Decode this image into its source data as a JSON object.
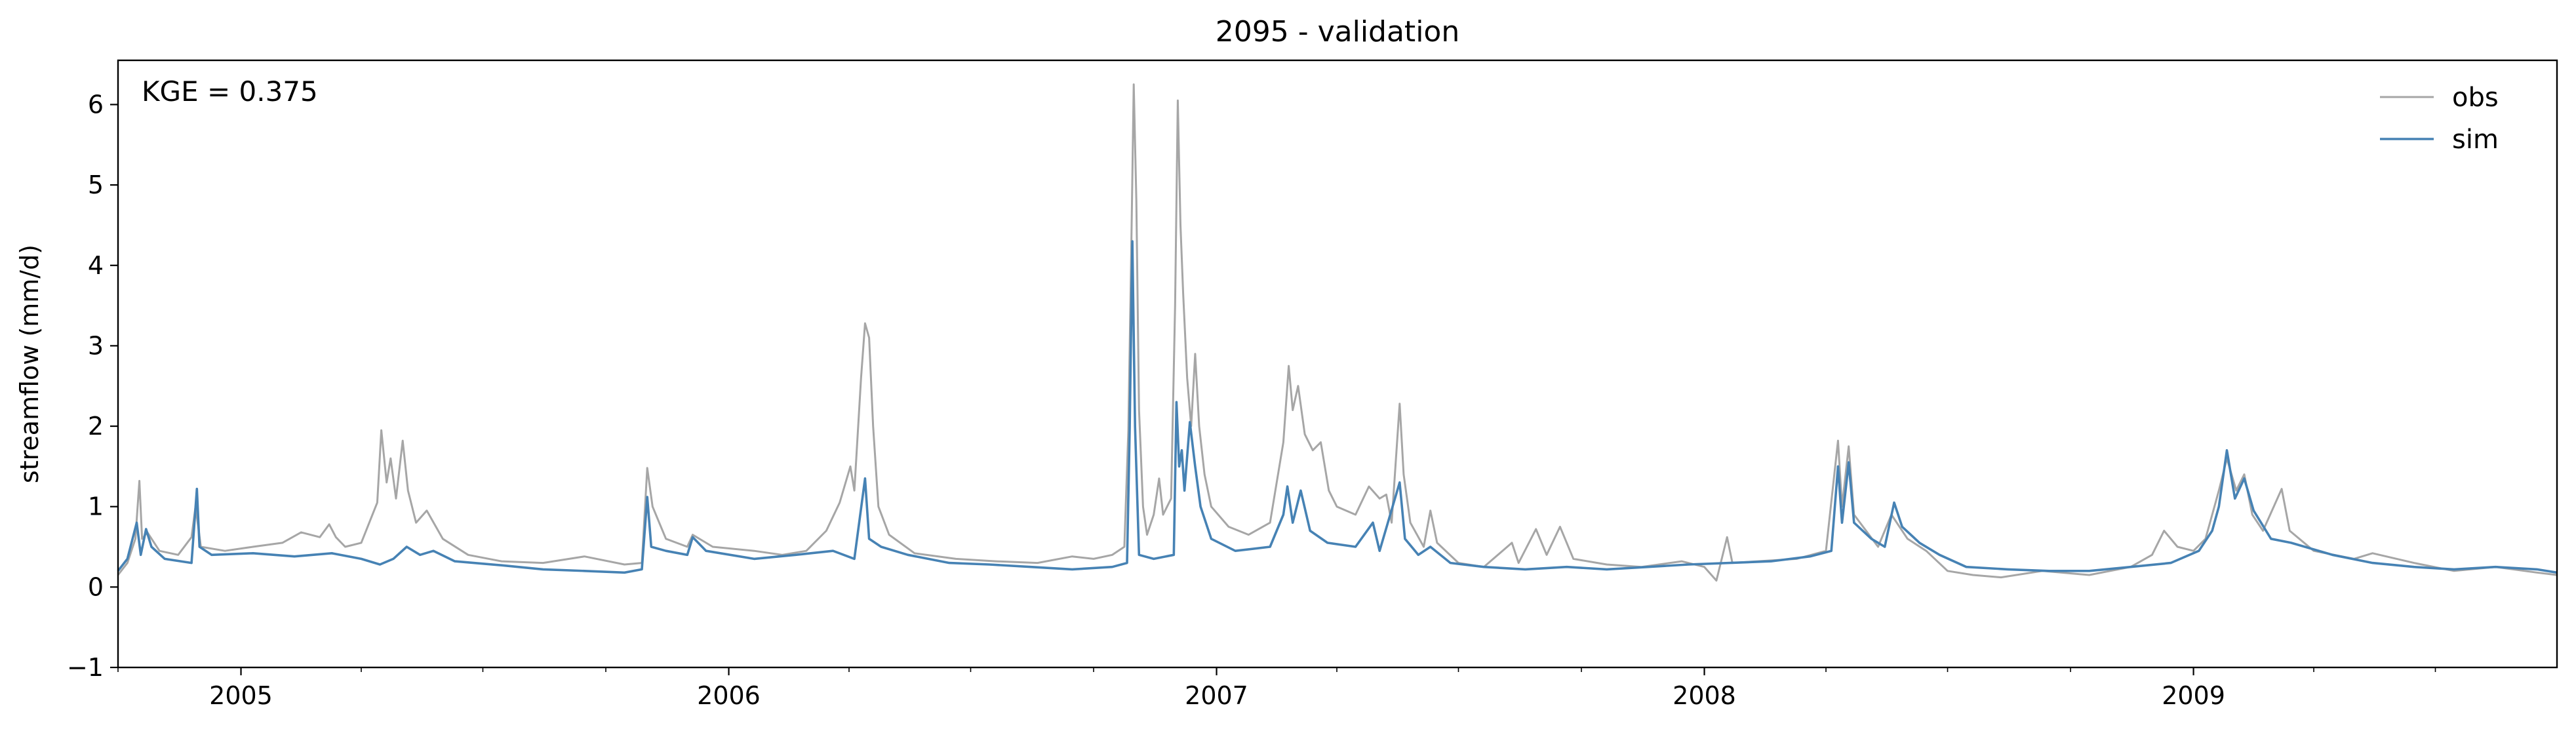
{
  "chart_data": {
    "type": "line",
    "title": "2095 - validation",
    "xlabel": "",
    "ylabel": "streamflow (mm/d)",
    "annotation": "KGE = 0.375",
    "xlim": [
      "2004-10-01",
      "2009-09-30"
    ],
    "ylim": [
      -1,
      6.55
    ],
    "grid": false,
    "legend_position": "top-right",
    "y_ticks": [
      -1,
      0,
      1,
      2,
      3,
      4,
      5,
      6
    ],
    "x_ticks": [
      "2005",
      "2006",
      "2007",
      "2008",
      "2009"
    ],
    "x_tick_dates": [
      "2005-01-01",
      "2006-01-01",
      "2007-01-01",
      "2008-01-01",
      "2009-01-01"
    ],
    "series": [
      {
        "name": "obs",
        "color": "#a6a6a6",
        "points": [
          [
            "2004-10-01",
            0.15
          ],
          [
            "2004-10-08",
            0.3
          ],
          [
            "2004-10-14",
            0.6
          ],
          [
            "2004-10-17",
            1.32
          ],
          [
            "2004-10-19",
            0.6
          ],
          [
            "2004-10-23",
            0.68
          ],
          [
            "2004-11-01",
            0.45
          ],
          [
            "2004-11-15",
            0.4
          ],
          [
            "2004-11-25",
            0.62
          ],
          [
            "2004-11-28",
            1.0
          ],
          [
            "2004-12-02",
            0.5
          ],
          [
            "2004-12-20",
            0.45
          ],
          [
            "2005-01-10",
            0.5
          ],
          [
            "2005-02-01",
            0.55
          ],
          [
            "2005-02-15",
            0.68
          ],
          [
            "2005-03-01",
            0.62
          ],
          [
            "2005-03-08",
            0.78
          ],
          [
            "2005-03-13",
            0.62
          ],
          [
            "2005-03-20",
            0.5
          ],
          [
            "2005-04-01",
            0.55
          ],
          [
            "2005-04-13",
            1.05
          ],
          [
            "2005-04-16",
            1.95
          ],
          [
            "2005-04-20",
            1.3
          ],
          [
            "2005-04-23",
            1.6
          ],
          [
            "2005-04-27",
            1.1
          ],
          [
            "2005-05-02",
            1.82
          ],
          [
            "2005-05-06",
            1.2
          ],
          [
            "2005-05-12",
            0.8
          ],
          [
            "2005-05-20",
            0.95
          ],
          [
            "2005-06-01",
            0.6
          ],
          [
            "2005-06-20",
            0.4
          ],
          [
            "2005-07-15",
            0.32
          ],
          [
            "2005-08-15",
            0.3
          ],
          [
            "2005-09-15",
            0.38
          ],
          [
            "2005-10-15",
            0.28
          ],
          [
            "2005-10-28",
            0.3
          ],
          [
            "2005-11-01",
            1.48
          ],
          [
            "2005-11-05",
            1.0
          ],
          [
            "2005-11-15",
            0.6
          ],
          [
            "2005-12-01",
            0.5
          ],
          [
            "2005-12-05",
            0.65
          ],
          [
            "2005-12-20",
            0.5
          ],
          [
            "2006-01-20",
            0.45
          ],
          [
            "2006-02-10",
            0.4
          ],
          [
            "2006-02-28",
            0.45
          ],
          [
            "2006-03-15",
            0.7
          ],
          [
            "2006-03-25",
            1.05
          ],
          [
            "2006-04-02",
            1.5
          ],
          [
            "2006-04-05",
            1.2
          ],
          [
            "2006-04-10",
            2.6
          ],
          [
            "2006-04-13",
            3.28
          ],
          [
            "2006-04-16",
            3.1
          ],
          [
            "2006-04-19",
            2.0
          ],
          [
            "2006-04-23",
            1.0
          ],
          [
            "2006-05-01",
            0.65
          ],
          [
            "2006-05-20",
            0.42
          ],
          [
            "2006-06-20",
            0.35
          ],
          [
            "2006-07-20",
            0.32
          ],
          [
            "2006-08-20",
            0.3
          ],
          [
            "2006-09-15",
            0.38
          ],
          [
            "2006-10-01",
            0.35
          ],
          [
            "2006-10-15",
            0.4
          ],
          [
            "2006-10-24",
            0.5
          ],
          [
            "2006-10-27",
            1.95
          ],
          [
            "2006-10-29",
            4.0
          ],
          [
            "2006-10-31",
            6.25
          ],
          [
            "2006-11-02",
            4.8
          ],
          [
            "2006-11-04",
            2.2
          ],
          [
            "2006-11-07",
            1.0
          ],
          [
            "2006-11-10",
            0.65
          ],
          [
            "2006-11-15",
            0.9
          ],
          [
            "2006-11-19",
            1.35
          ],
          [
            "2006-11-22",
            0.9
          ],
          [
            "2006-11-28",
            1.1
          ],
          [
            "2006-12-01",
            3.5
          ],
          [
            "2006-12-03",
            6.05
          ],
          [
            "2006-12-05",
            4.5
          ],
          [
            "2006-12-07",
            3.65
          ],
          [
            "2006-12-10",
            2.6
          ],
          [
            "2006-12-13",
            2.0
          ],
          [
            "2006-12-16",
            2.9
          ],
          [
            "2006-12-19",
            2.0
          ],
          [
            "2006-12-23",
            1.4
          ],
          [
            "2006-12-28",
            1.0
          ],
          [
            "2007-01-10",
            0.75
          ],
          [
            "2007-01-25",
            0.65
          ],
          [
            "2007-02-10",
            0.8
          ],
          [
            "2007-02-20",
            1.8
          ],
          [
            "2007-02-24",
            2.75
          ],
          [
            "2007-02-27",
            2.2
          ],
          [
            "2007-03-03",
            2.5
          ],
          [
            "2007-03-08",
            1.9
          ],
          [
            "2007-03-14",
            1.7
          ],
          [
            "2007-03-20",
            1.8
          ],
          [
            "2007-03-26",
            1.2
          ],
          [
            "2007-04-01",
            1.0
          ],
          [
            "2007-04-15",
            0.9
          ],
          [
            "2007-04-25",
            1.25
          ],
          [
            "2007-05-03",
            1.1
          ],
          [
            "2007-05-08",
            1.15
          ],
          [
            "2007-05-12",
            0.8
          ],
          [
            "2007-05-18",
            2.28
          ],
          [
            "2007-05-21",
            1.4
          ],
          [
            "2007-05-26",
            0.8
          ],
          [
            "2007-06-05",
            0.5
          ],
          [
            "2007-06-10",
            0.95
          ],
          [
            "2007-06-15",
            0.55
          ],
          [
            "2007-07-01",
            0.3
          ],
          [
            "2007-07-20",
            0.25
          ],
          [
            "2007-08-10",
            0.55
          ],
          [
            "2007-08-15",
            0.3
          ],
          [
            "2007-08-28",
            0.72
          ],
          [
            "2007-09-05",
            0.4
          ],
          [
            "2007-09-15",
            0.75
          ],
          [
            "2007-09-25",
            0.35
          ],
          [
            "2007-10-20",
            0.28
          ],
          [
            "2007-11-15",
            0.25
          ],
          [
            "2007-12-15",
            0.32
          ],
          [
            "2008-01-01",
            0.25
          ],
          [
            "2008-01-10",
            0.08
          ],
          [
            "2008-01-18",
            0.62
          ],
          [
            "2008-01-22",
            0.3
          ],
          [
            "2008-02-10",
            0.32
          ],
          [
            "2008-03-10",
            0.35
          ],
          [
            "2008-04-01",
            0.45
          ],
          [
            "2008-04-10",
            1.82
          ],
          [
            "2008-04-13",
            1.0
          ],
          [
            "2008-04-18",
            1.75
          ],
          [
            "2008-04-22",
            0.9
          ],
          [
            "2008-05-01",
            0.7
          ],
          [
            "2008-05-10",
            0.5
          ],
          [
            "2008-05-20",
            0.9
          ],
          [
            "2008-06-01",
            0.6
          ],
          [
            "2008-06-15",
            0.45
          ],
          [
            "2008-07-01",
            0.2
          ],
          [
            "2008-07-20",
            0.15
          ],
          [
            "2008-08-10",
            0.12
          ],
          [
            "2008-09-10",
            0.2
          ],
          [
            "2008-10-15",
            0.15
          ],
          [
            "2008-11-15",
            0.25
          ],
          [
            "2008-12-01",
            0.4
          ],
          [
            "2008-12-10",
            0.7
          ],
          [
            "2008-12-20",
            0.5
          ],
          [
            "2009-01-01",
            0.45
          ],
          [
            "2009-01-10",
            0.6
          ],
          [
            "2009-01-20",
            1.2
          ],
          [
            "2009-01-26",
            1.6
          ],
          [
            "2009-02-02",
            1.2
          ],
          [
            "2009-02-08",
            1.4
          ],
          [
            "2009-02-14",
            0.9
          ],
          [
            "2009-02-22",
            0.7
          ],
          [
            "2009-03-08",
            1.22
          ],
          [
            "2009-03-14",
            0.7
          ],
          [
            "2009-04-01",
            0.45
          ],
          [
            "2009-05-01",
            0.35
          ],
          [
            "2009-05-15",
            0.42
          ],
          [
            "2009-06-15",
            0.3
          ],
          [
            "2009-07-15",
            0.2
          ],
          [
            "2009-08-15",
            0.25
          ],
          [
            "2009-09-15",
            0.18
          ],
          [
            "2009-09-30",
            0.15
          ]
        ]
      },
      {
        "name": "sim",
        "color": "#4682b4",
        "points": [
          [
            "2004-10-01",
            0.2
          ],
          [
            "2004-10-08",
            0.35
          ],
          [
            "2004-10-15",
            0.8
          ],
          [
            "2004-10-18",
            0.4
          ],
          [
            "2004-10-22",
            0.72
          ],
          [
            "2004-10-26",
            0.5
          ],
          [
            "2004-11-05",
            0.35
          ],
          [
            "2004-11-25",
            0.3
          ],
          [
            "2004-11-29",
            1.22
          ],
          [
            "2004-12-01",
            0.5
          ],
          [
            "2004-12-10",
            0.4
          ],
          [
            "2005-01-10",
            0.42
          ],
          [
            "2005-02-10",
            0.38
          ],
          [
            "2005-03-10",
            0.42
          ],
          [
            "2005-04-01",
            0.35
          ],
          [
            "2005-04-15",
            0.28
          ],
          [
            "2005-04-25",
            0.35
          ],
          [
            "2005-05-05",
            0.5
          ],
          [
            "2005-05-15",
            0.4
          ],
          [
            "2005-05-25",
            0.45
          ],
          [
            "2005-06-10",
            0.32
          ],
          [
            "2005-07-15",
            0.27
          ],
          [
            "2005-08-15",
            0.22
          ],
          [
            "2005-09-15",
            0.2
          ],
          [
            "2005-10-15",
            0.18
          ],
          [
            "2005-10-28",
            0.22
          ],
          [
            "2005-11-01",
            1.12
          ],
          [
            "2005-11-04",
            0.5
          ],
          [
            "2005-11-15",
            0.45
          ],
          [
            "2005-12-01",
            0.4
          ],
          [
            "2005-12-05",
            0.62
          ],
          [
            "2005-12-15",
            0.45
          ],
          [
            "2006-01-20",
            0.35
          ],
          [
            "2006-02-20",
            0.4
          ],
          [
            "2006-03-20",
            0.45
          ],
          [
            "2006-04-05",
            0.35
          ],
          [
            "2006-04-13",
            1.35
          ],
          [
            "2006-04-16",
            0.6
          ],
          [
            "2006-04-25",
            0.5
          ],
          [
            "2006-05-15",
            0.4
          ],
          [
            "2006-06-15",
            0.3
          ],
          [
            "2006-07-15",
            0.28
          ],
          [
            "2006-08-15",
            0.25
          ],
          [
            "2006-09-15",
            0.22
          ],
          [
            "2006-10-15",
            0.25
          ],
          [
            "2006-10-26",
            0.3
          ],
          [
            "2006-10-28",
            1.95
          ],
          [
            "2006-10-30",
            4.3
          ],
          [
            "2006-11-01",
            2.0
          ],
          [
            "2006-11-04",
            0.4
          ],
          [
            "2006-11-15",
            0.35
          ],
          [
            "2006-11-30",
            0.4
          ],
          [
            "2006-12-02",
            2.3
          ],
          [
            "2006-12-04",
            1.5
          ],
          [
            "2006-12-06",
            1.7
          ],
          [
            "2006-12-08",
            1.2
          ],
          [
            "2006-12-12",
            2.05
          ],
          [
            "2006-12-16",
            1.5
          ],
          [
            "2006-12-20",
            1.0
          ],
          [
            "2006-12-28",
            0.6
          ],
          [
            "2007-01-15",
            0.45
          ],
          [
            "2007-02-10",
            0.5
          ],
          [
            "2007-02-20",
            0.9
          ],
          [
            "2007-02-23",
            1.25
          ],
          [
            "2007-02-27",
            0.8
          ],
          [
            "2007-03-05",
            1.2
          ],
          [
            "2007-03-12",
            0.7
          ],
          [
            "2007-03-25",
            0.55
          ],
          [
            "2007-04-15",
            0.5
          ],
          [
            "2007-04-28",
            0.8
          ],
          [
            "2007-05-03",
            0.45
          ],
          [
            "2007-05-18",
            1.3
          ],
          [
            "2007-05-22",
            0.6
          ],
          [
            "2007-06-01",
            0.4
          ],
          [
            "2007-06-10",
            0.5
          ],
          [
            "2007-06-25",
            0.3
          ],
          [
            "2007-07-20",
            0.25
          ],
          [
            "2007-08-20",
            0.22
          ],
          [
            "2007-09-20",
            0.25
          ],
          [
            "2007-10-20",
            0.22
          ],
          [
            "2007-11-20",
            0.25
          ],
          [
            "2007-12-20",
            0.28
          ],
          [
            "2008-01-20",
            0.3
          ],
          [
            "2008-02-20",
            0.32
          ],
          [
            "2008-03-20",
            0.38
          ],
          [
            "2008-04-05",
            0.45
          ],
          [
            "2008-04-10",
            1.5
          ],
          [
            "2008-04-13",
            0.8
          ],
          [
            "2008-04-18",
            1.55
          ],
          [
            "2008-04-22",
            0.8
          ],
          [
            "2008-05-05",
            0.6
          ],
          [
            "2008-05-15",
            0.5
          ],
          [
            "2008-05-22",
            1.05
          ],
          [
            "2008-05-28",
            0.75
          ],
          [
            "2008-06-10",
            0.55
          ],
          [
            "2008-06-25",
            0.4
          ],
          [
            "2008-07-15",
            0.25
          ],
          [
            "2008-08-15",
            0.22
          ],
          [
            "2008-09-15",
            0.2
          ],
          [
            "2008-10-15",
            0.2
          ],
          [
            "2008-11-15",
            0.25
          ],
          [
            "2008-12-15",
            0.3
          ],
          [
            "2009-01-05",
            0.45
          ],
          [
            "2009-01-15",
            0.7
          ],
          [
            "2009-01-20",
            1.0
          ],
          [
            "2009-01-26",
            1.7
          ],
          [
            "2009-02-01",
            1.1
          ],
          [
            "2009-02-08",
            1.35
          ],
          [
            "2009-02-15",
            0.95
          ],
          [
            "2009-02-28",
            0.6
          ],
          [
            "2009-03-15",
            0.55
          ],
          [
            "2009-04-15",
            0.4
          ],
          [
            "2009-05-15",
            0.3
          ],
          [
            "2009-06-15",
            0.25
          ],
          [
            "2009-07-15",
            0.22
          ],
          [
            "2009-08-15",
            0.25
          ],
          [
            "2009-09-15",
            0.22
          ],
          [
            "2009-09-30",
            0.18
          ]
        ]
      }
    ]
  }
}
